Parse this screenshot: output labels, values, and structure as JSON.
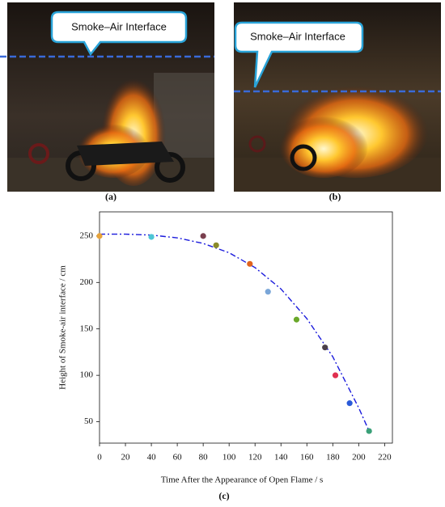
{
  "panels": [
    {
      "label": "(a)",
      "callout": "Smoke–Air Interface"
    },
    {
      "label": "(b)",
      "callout": "Smoke–Air Interface"
    }
  ],
  "chart_data": {
    "type": "scatter",
    "caption": "(c)",
    "x_label": "Time After the Appearance of Open Flame / s",
    "y_label": "Height of Smoke-air interface / cm",
    "x": [
      0,
      40,
      80,
      90,
      116,
      130,
      152,
      174,
      182,
      193,
      208
    ],
    "values": [
      250,
      249,
      250,
      240,
      220,
      190,
      160,
      130,
      100,
      70,
      40
    ],
    "colors": [
      "#e8a33a",
      "#4dc6d6",
      "#7a3f4e",
      "#8a8a2a",
      "#e0641e",
      "#7aa6d8",
      "#6aa82a",
      "#4a3f4a",
      "#e03050",
      "#2a5ad8",
      "#3aa078"
    ],
    "fit": {
      "color": "#1a1adc",
      "x": [
        0,
        20,
        40,
        60,
        80,
        100,
        120,
        140,
        160,
        180,
        200,
        208
      ],
      "values": [
        252,
        252,
        251,
        248,
        242,
        232,
        216,
        193,
        161,
        120,
        65,
        40
      ]
    },
    "xlim": [
      0,
      226
    ],
    "ylim": [
      27,
      276
    ],
    "xticks": [
      0,
      20,
      40,
      60,
      80,
      100,
      120,
      140,
      160,
      180,
      200,
      220
    ],
    "yticks": [
      50,
      100,
      150,
      200,
      250
    ],
    "grid": false
  }
}
